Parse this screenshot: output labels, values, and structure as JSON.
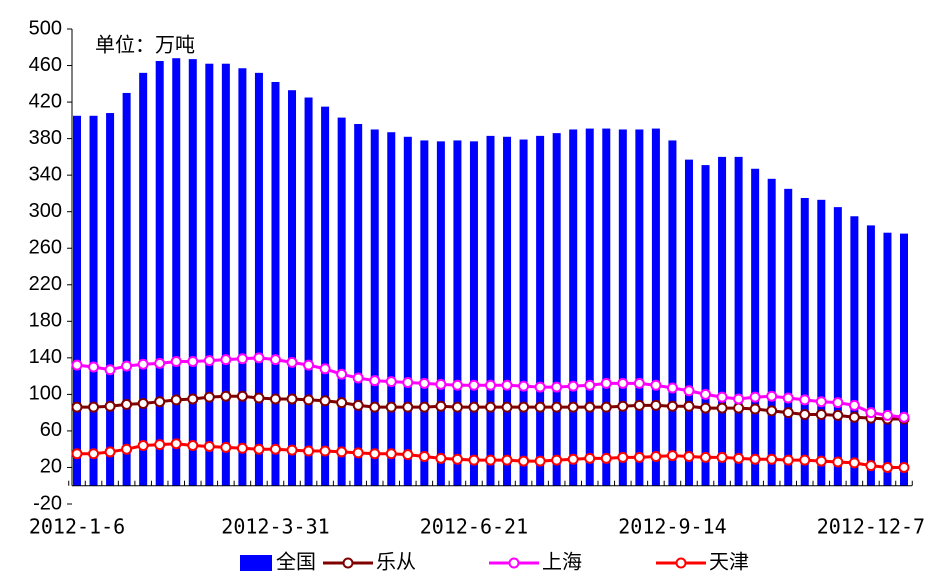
{
  "chart_data": {
    "type": "bar_line",
    "annotation": "单位：万吨",
    "categories": [
      "2012-1-6",
      null,
      null,
      null,
      null,
      null,
      null,
      null,
      null,
      null,
      null,
      null,
      "2012-3-31",
      null,
      null,
      null,
      null,
      null,
      null,
      null,
      null,
      null,
      null,
      null,
      "2012-6-21",
      null,
      null,
      null,
      null,
      null,
      null,
      null,
      null,
      null,
      null,
      null,
      "2012-9-14",
      null,
      null,
      null,
      null,
      null,
      null,
      null,
      null,
      null,
      null,
      null,
      "2012-12-7",
      null,
      null
    ],
    "ylim": [
      -20,
      500
    ],
    "yticks": [
      -20,
      20,
      60,
      100,
      140,
      180,
      220,
      260,
      300,
      340,
      380,
      420,
      460,
      500
    ],
    "series": [
      {
        "name": "全国",
        "kind": "bar",
        "color": "#0000ff",
        "values": [
          405,
          405,
          408,
          430,
          452,
          465,
          468,
          467,
          462,
          462,
          457,
          452,
          442,
          433,
          425,
          415,
          403,
          396,
          390,
          387,
          382,
          378,
          377,
          378,
          377,
          383,
          382,
          379,
          383,
          386,
          390,
          391,
          391,
          390,
          390,
          391,
          378,
          357,
          351,
          360,
          360,
          347,
          336,
          325,
          315,
          313,
          305,
          295,
          285,
          277,
          276
        ]
      },
      {
        "name": "乐从",
        "kind": "line",
        "color": "#800000",
        "values": [
          86,
          86,
          87,
          89,
          90,
          92,
          94,
          95,
          97,
          98,
          98,
          96,
          95,
          95,
          94,
          93,
          91,
          88,
          86,
          86,
          86,
          86,
          87,
          86,
          86,
          86,
          86,
          86,
          86,
          86,
          86,
          86,
          86,
          87,
          88,
          88,
          87,
          87,
          85,
          85,
          85,
          84,
          82,
          80,
          78,
          78,
          77,
          75,
          74,
          73,
          73
        ]
      },
      {
        "name": "上海",
        "kind": "line",
        "color": "#ff00ff",
        "values": [
          132,
          130,
          127,
          131,
          133,
          134,
          136,
          136,
          137,
          138,
          139,
          140,
          138,
          135,
          132,
          128,
          122,
          118,
          115,
          114,
          113,
          112,
          111,
          110,
          110,
          110,
          110,
          109,
          108,
          108,
          109,
          110,
          112,
          112,
          112,
          110,
          107,
          104,
          100,
          97,
          95,
          97,
          98,
          96,
          94,
          92,
          91,
          88,
          80,
          77,
          75
        ]
      },
      {
        "name": "天津",
        "kind": "line",
        "color": "#ff0000",
        "values": [
          35,
          35,
          37,
          40,
          44,
          45,
          46,
          44,
          43,
          42,
          41,
          40,
          40,
          39,
          38,
          38,
          37,
          36,
          35,
          35,
          34,
          32,
          30,
          29,
          28,
          28,
          28,
          27,
          27,
          28,
          29,
          30,
          30,
          31,
          31,
          32,
          33,
          32,
          31,
          31,
          30,
          29,
          29,
          28,
          28,
          27,
          26,
          25,
          22,
          20,
          20
        ]
      }
    ]
  }
}
